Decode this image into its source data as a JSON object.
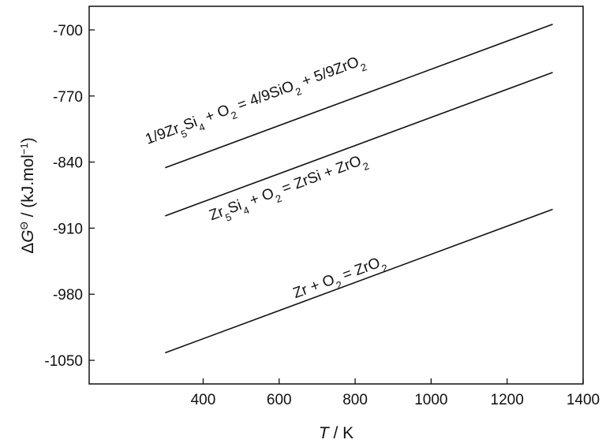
{
  "chart_data": {
    "type": "line",
    "xlabel": {
      "italic": "T",
      "rest": " / K"
    },
    "ylabel": {
      "delta": "Δ",
      "g": "G",
      "sup": "Θ",
      "unit_open": " / (kJ.mol",
      "unit_sup": "−1",
      "unit_close": ")"
    },
    "xlim": [
      100,
      1400
    ],
    "ylim": [
      -1075,
      -675
    ],
    "xticks": [
      400,
      600,
      800,
      1000,
      1200,
      1400
    ],
    "xtick_labels": [
      "400",
      "600",
      "800",
      "1000",
      "1200",
      "1400"
    ],
    "yticks": [
      -700,
      -770,
      -840,
      -910,
      -980,
      -1050
    ],
    "ytick_labels": [
      "-700",
      "-770",
      "-840",
      "-910",
      "-980",
      "-1050"
    ],
    "grid": false,
    "series": [
      {
        "x": [
          300,
          1320
        ],
        "y": [
          -846,
          -694
        ],
        "label_parts": [
          {
            "t": "1/9Zr"
          },
          {
            "t": "5",
            "sub": true
          },
          {
            "t": "Si"
          },
          {
            "t": "4",
            "sub": true
          },
          {
            "t": " + O"
          },
          {
            "t": "2",
            "sub": true
          },
          {
            "t": " = 4/9SiO"
          },
          {
            "t": "2",
            "sub": true
          },
          {
            "t": " + 5/9ZrO"
          },
          {
            "t": "2",
            "sub": true
          }
        ]
      },
      {
        "x": [
          300,
          1320
        ],
        "y": [
          -897,
          -745
        ],
        "label_parts": [
          {
            "t": "Zr"
          },
          {
            "t": "5",
            "sub": true
          },
          {
            "t": "Si"
          },
          {
            "t": "4",
            "sub": true
          },
          {
            "t": " + O"
          },
          {
            "t": "2",
            "sub": true
          },
          {
            "t": " = ZrSi + ZrO"
          },
          {
            "t": "2",
            "sub": true
          }
        ]
      },
      {
        "x": [
          300,
          1320
        ],
        "y": [
          -1042,
          -890
        ],
        "label_parts": [
          {
            "t": "Zr + O"
          },
          {
            "t": "2",
            "sub": true
          },
          {
            "t": " = ZrO"
          },
          {
            "t": "2",
            "sub": true
          }
        ]
      }
    ]
  }
}
